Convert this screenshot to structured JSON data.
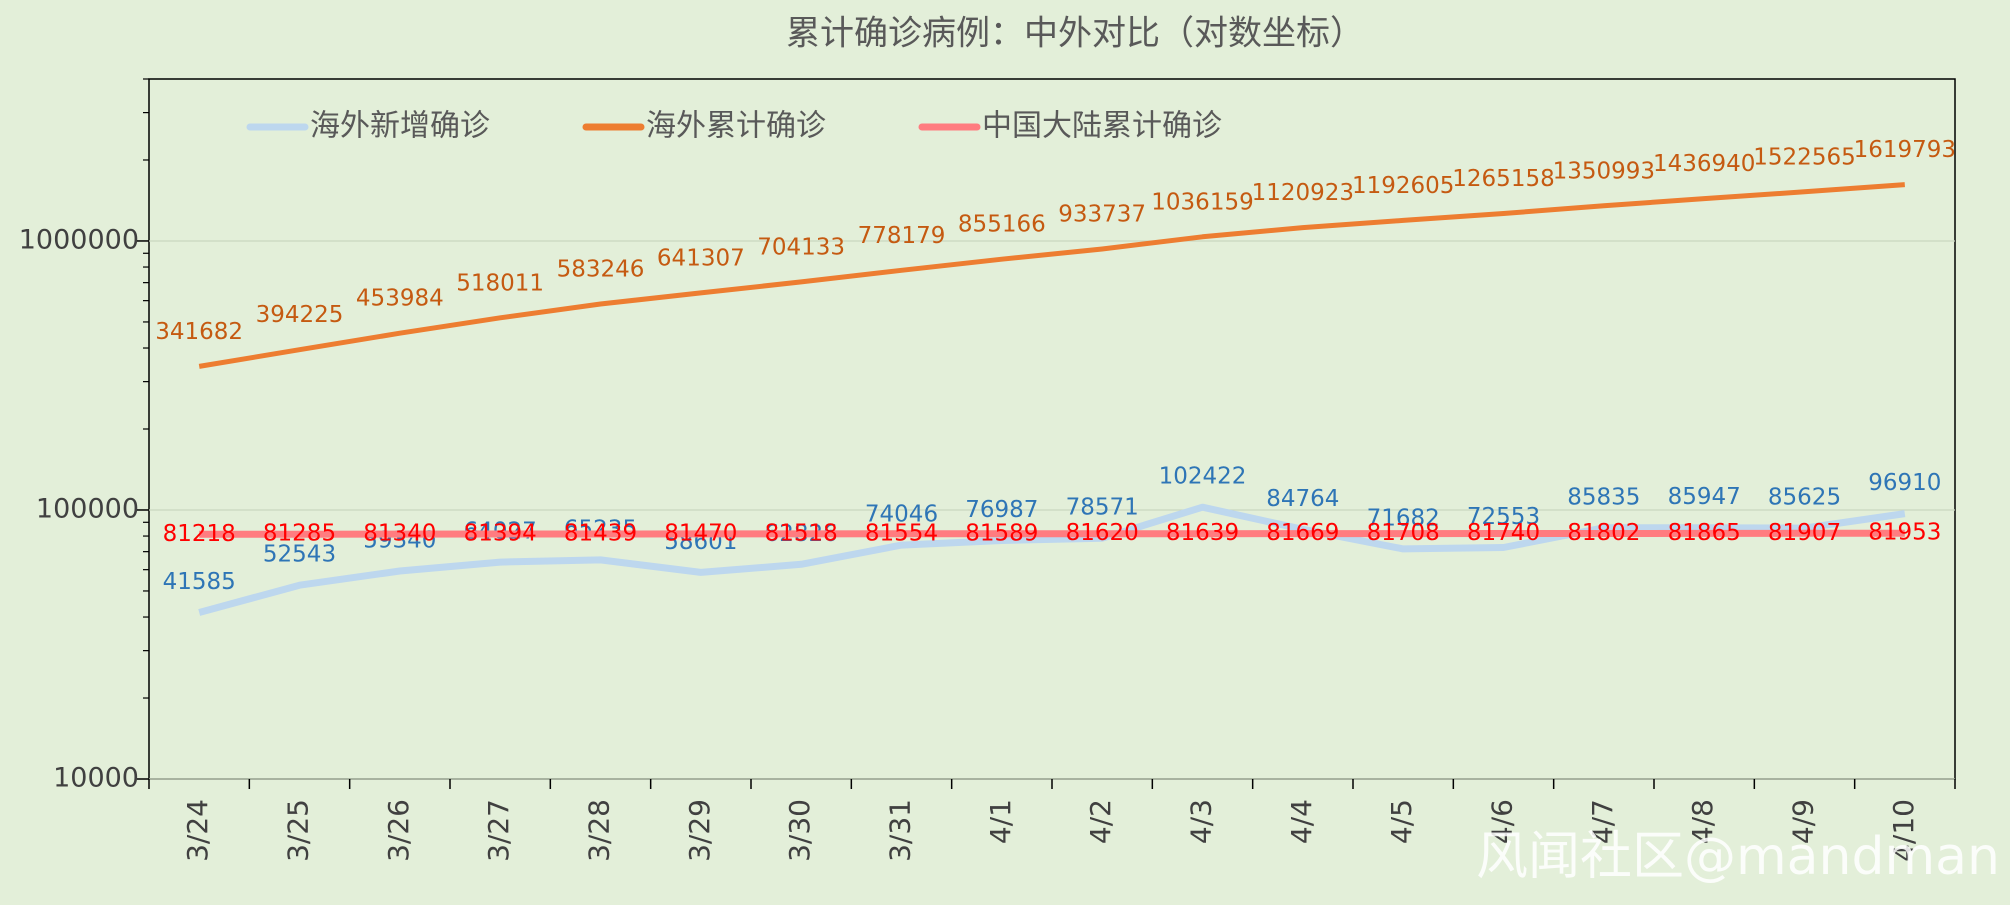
{
  "chart_data": {
    "type": "line",
    "title": "累计确诊病例：中外对比（对数坐标）",
    "categories": [
      "3/24",
      "3/25",
      "3/26",
      "3/27",
      "3/28",
      "3/29",
      "3/30",
      "3/31",
      "4/1",
      "4/2",
      "4/3",
      "4/4",
      "4/5",
      "4/6",
      "4/7",
      "4/8",
      "4/9",
      "4/10"
    ],
    "series": [
      {
        "name": "海外新增确诊",
        "color": "#bdd7ee",
        "label_color": "#2e75b6",
        "values": [
          41585,
          52543,
          59340,
          64027,
          65235,
          58601,
          62826,
          74046,
          76987,
          78571,
          102422,
          84764,
          71682,
          72553,
          85835,
          85947,
          85625,
          96910
        ]
      },
      {
        "name": "海外累计确诊",
        "color": "#ed7d31",
        "label_color": "#c55a11",
        "values": [
          341682,
          394225,
          453984,
          518011,
          583246,
          641307,
          704133,
          778179,
          855166,
          933737,
          1036159,
          1120923,
          1192605,
          1265158,
          1350993,
          1436940,
          1522565,
          1619793
        ]
      },
      {
        "name": "中国大陆累计确诊",
        "color": "#ff7c80",
        "label_color": "#ff0000",
        "values": [
          81218,
          81285,
          81340,
          81394,
          81439,
          81470,
          81518,
          81554,
          81589,
          81620,
          81639,
          81669,
          81708,
          81740,
          81802,
          81865,
          81907,
          81953
        ]
      }
    ],
    "ylim": [
      10000,
      4000000
    ],
    "yticks": [
      10000,
      100000,
      1000000
    ],
    "log_scale": true,
    "grid": true,
    "legend": "top-left",
    "watermark": "风闻社区@mandman"
  }
}
